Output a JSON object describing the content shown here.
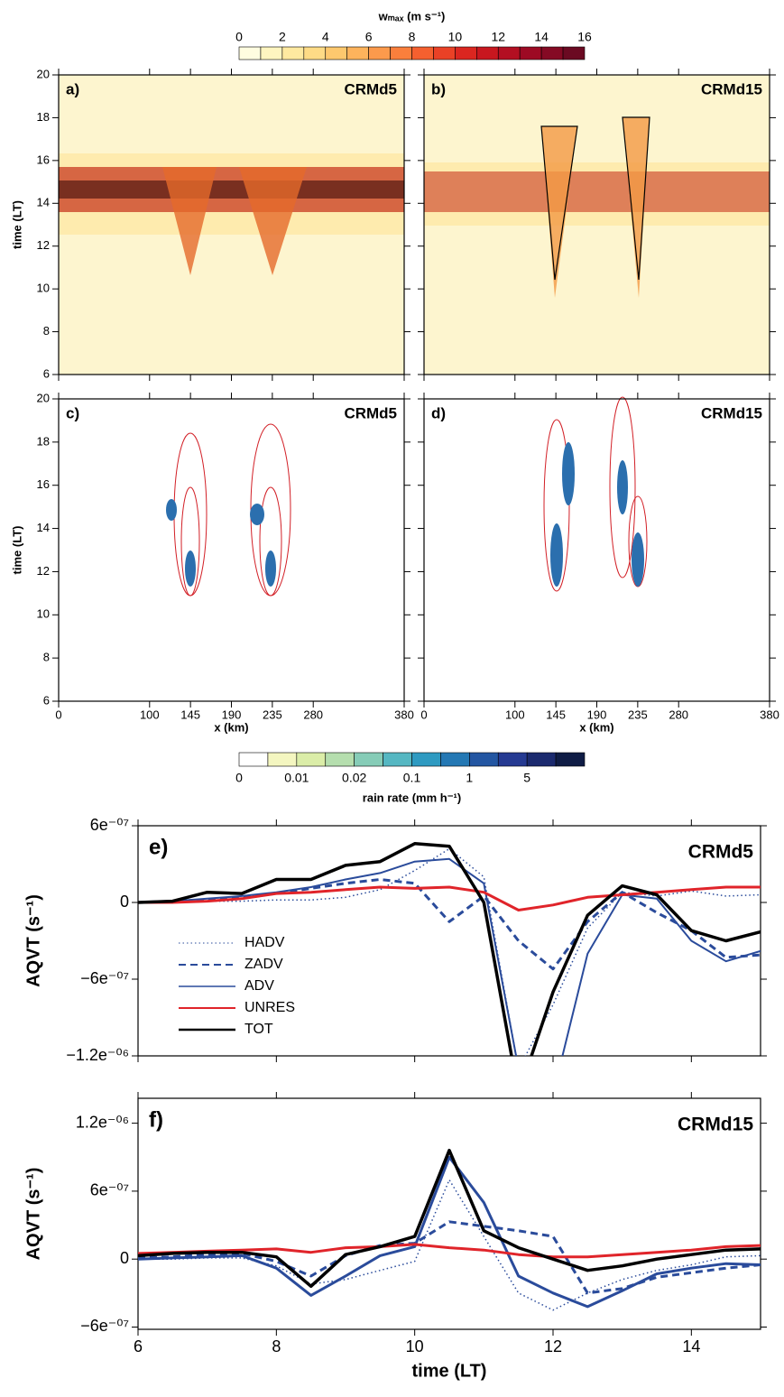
{
  "chart_data": [
    {
      "type": "colorbar",
      "title": "wₘₐₓ (m s⁻¹)",
      "xlim": [
        0,
        16
      ],
      "ticks": [
        0,
        2,
        4,
        6,
        8,
        10,
        12,
        14,
        16
      ],
      "colors": [
        "#fffde0",
        "#fef5c0",
        "#fee9a0",
        "#fedb86",
        "#fdc86e",
        "#fdb35c",
        "#fc9a4c",
        "#fa7f3c",
        "#f5602f",
        "#ea4126",
        "#db2620",
        "#c8171f",
        "#b30f22",
        "#9d0a24",
        "#850a24",
        "#6b0a22"
      ]
    },
    {
      "type": "heatmap",
      "panel_label": "a)",
      "model": "CRMd5",
      "ylabel": "time (LT)",
      "xlim": [
        0,
        380
      ],
      "ylim": [
        6,
        20
      ],
      "yticks": [
        6,
        8,
        10,
        12,
        14,
        16,
        18,
        20
      ],
      "xticks": [
        0,
        100,
        145,
        190,
        235,
        280,
        380
      ]
    },
    {
      "type": "heatmap",
      "panel_label": "b)",
      "model": "CRMd15",
      "xlim": [
        0,
        380
      ],
      "ylim": [
        6,
        20
      ],
      "yticks": [
        6,
        8,
        10,
        12,
        14,
        16,
        18,
        20
      ],
      "xticks": [
        0,
        100,
        145,
        190,
        235,
        280,
        380
      ]
    },
    {
      "type": "heatmap",
      "panel_label": "c)",
      "model": "CRMd5",
      "ylabel": "time (LT)",
      "xlabel": "x (km)",
      "xlim": [
        0,
        380
      ],
      "ylim": [
        6,
        20
      ],
      "yticks": [
        6,
        8,
        10,
        12,
        14,
        16,
        18,
        20
      ],
      "xticks": [
        0,
        100,
        145,
        190,
        235,
        280,
        380
      ]
    },
    {
      "type": "heatmap",
      "panel_label": "d)",
      "model": "CRMd15",
      "xlabel": "x (km)",
      "xlim": [
        0,
        380
      ],
      "ylim": [
        6,
        20
      ],
      "yticks": [
        6,
        8,
        10,
        12,
        14,
        16,
        18,
        20
      ],
      "xticks": [
        0,
        100,
        145,
        190,
        235,
        280,
        380
      ]
    },
    {
      "type": "colorbar_categorical",
      "title": "rain rate (mm h⁻¹)",
      "ticks": [
        0,
        0.01,
        0.02,
        0.1,
        1,
        5
      ],
      "colors": [
        "#ffffff",
        "#f4f6c0",
        "#dbeda8",
        "#b5deae",
        "#86ccb7",
        "#55b7c2",
        "#2e9ac1",
        "#2478b4",
        "#2356a2",
        "#253a92",
        "#1b2a6e",
        "#0f1c45"
      ]
    },
    {
      "type": "line",
      "panel_label": "e)",
      "model": "CRMd5",
      "ylabel": "AQVT (s⁻¹)",
      "x": [
        6,
        6.5,
        7,
        7.5,
        8,
        8.5,
        9,
        9.5,
        10,
        10.5,
        11,
        11.5,
        12,
        12.5,
        13,
        13.5,
        14,
        14.5,
        15
      ],
      "xlim": [
        6,
        15
      ],
      "xticks": [
        6,
        8,
        10,
        12,
        14
      ],
      "ylim": [
        -1.2e-06,
        6e-07
      ],
      "yticks": [
        {
          "value": -1.2e-06,
          "label": "−1.2e⁻⁰⁶"
        },
        {
          "value": -6e-07,
          "label": "−6e⁻⁰⁷"
        },
        0,
        {
          "value": 6e-07,
          "label": "6e⁻⁰⁷"
        }
      ],
      "series": [
        {
          "name": "HADV",
          "color": "#2a4b9b",
          "style": "dotted",
          "width": 1.5,
          "values": [
            0,
            0,
            1e-08,
            1e-08,
            2e-08,
            2e-08,
            4e-08,
            1e-07,
            2.5e-07,
            4.2e-07,
            2e-07,
            -1.3e-06,
            -8e-07,
            -2e-07,
            8e-08,
            5e-08,
            9e-08,
            5e-08,
            6e-08
          ]
        },
        {
          "name": "ZADV",
          "color": "#2a4b9b",
          "style": "dashed",
          "width": 3,
          "values": [
            0,
            1e-08,
            2e-08,
            4e-08,
            7e-08,
            1.1e-07,
            1.5e-07,
            1.8e-07,
            1.5e-07,
            -1.5e-07,
            5e-08,
            -3e-07,
            -5.2e-07,
            -1.5e-07,
            8e-08,
            -8e-08,
            -2.2e-07,
            -4.3e-07,
            -4.1e-07
          ]
        },
        {
          "name": "ADV",
          "color": "#2a4b9b",
          "style": "solid",
          "width": 2,
          "values": [
            0,
            1e-08,
            3e-08,
            5e-08,
            8e-08,
            1.2e-07,
            1.8e-07,
            2.3e-07,
            3.2e-07,
            3.4e-07,
            1.5e-07,
            -1.3e-06,
            -1.5e-06,
            -4e-07,
            6e-08,
            3e-08,
            -3e-07,
            -4.6e-07,
            -3.8e-07
          ]
        },
        {
          "name": "UNRES",
          "color": "#e0242a",
          "style": "solid",
          "width": 3,
          "values": [
            0,
            0,
            1e-08,
            3e-08,
            7e-08,
            8e-08,
            1e-07,
            1.2e-07,
            1.1e-07,
            1.2e-07,
            8e-08,
            -6e-08,
            -2e-08,
            4e-08,
            6e-08,
            8e-08,
            1e-07,
            1.2e-07,
            1.2e-07
          ]
        },
        {
          "name": "TOT",
          "color": "#000000",
          "style": "solid",
          "width": 3.5,
          "values": [
            0,
            1e-08,
            8e-08,
            7e-08,
            1.8e-07,
            1.8e-07,
            2.9e-07,
            3.2e-07,
            4.6e-07,
            4.4e-07,
            0,
            -1.5e-06,
            -7e-07,
            -1e-07,
            1.3e-07,
            6e-08,
            -2.2e-07,
            -3e-07,
            -2.3e-07
          ]
        }
      ]
    },
    {
      "type": "line",
      "panel_label": "f)",
      "model": "CRMd15",
      "ylabel": "AQVT (s⁻¹)",
      "xlabel": "time (LT)",
      "x": [
        6,
        6.5,
        7,
        7.5,
        8,
        8.5,
        9,
        9.5,
        10,
        10.5,
        11,
        11.5,
        12,
        12.5,
        13,
        13.5,
        14,
        14.5,
        15
      ],
      "xlim": [
        6,
        15
      ],
      "xticks": [
        6,
        8,
        10,
        12,
        14
      ],
      "ylim": [
        -6.2e-07,
        1.42e-06
      ],
      "yticks": [
        {
          "value": -6e-07,
          "label": "−6e⁻⁰⁷"
        },
        0,
        {
          "value": 6e-07,
          "label": "6e⁻⁰⁷"
        },
        {
          "value": 1.2e-06,
          "label": "1.2e⁻⁰⁶"
        }
      ],
      "series": [
        {
          "color": "#2a4b9b",
          "style": "dotted",
          "width": 1.5,
          "values": [
            0,
            0,
            1e-08,
            1e-08,
            -6e-08,
            -2.2e-07,
            -1.8e-07,
            -1e-07,
            -2e-08,
            7e-07,
            2e-07,
            -3e-07,
            -4.5e-07,
            -3e-07,
            -1.8e-07,
            -1e-07,
            -5e-08,
            2e-08,
            3e-08
          ]
        },
        {
          "color": "#2a4b9b",
          "style": "dashed",
          "width": 3,
          "values": [
            1e-08,
            2e-08,
            4e-08,
            5e-08,
            -2e-08,
            -1.5e-07,
            3e-08,
            1.2e-07,
            1.4e-07,
            3.3e-07,
            2.9e-07,
            2.5e-07,
            2e-07,
            -3e-07,
            -2.6e-07,
            -1.6e-07,
            -1.2e-07,
            -8e-08,
            -5e-08
          ]
        },
        {
          "color": "#2a4b9b",
          "style": "solid",
          "width": 3,
          "values": [
            0,
            1e-08,
            2e-08,
            3e-08,
            -8e-08,
            -3.2e-07,
            -1.5e-07,
            3e-08,
            1.1e-07,
            9e-07,
            5e-07,
            -1.5e-07,
            -3e-07,
            -4.2e-07,
            -2.8e-07,
            -1.3e-07,
            -8e-08,
            -4e-08,
            -5e-08
          ]
        },
        {
          "color": "#e0242a",
          "style": "solid",
          "width": 3,
          "values": [
            5e-08,
            6e-08,
            7e-08,
            8e-08,
            9e-08,
            6e-08,
            1e-07,
            1.1e-07,
            1.3e-07,
            1e-07,
            8e-08,
            4e-08,
            2e-08,
            2e-08,
            4e-08,
            6e-08,
            8e-08,
            1.1e-07,
            1.2e-07
          ]
        },
        {
          "color": "#000000",
          "style": "solid",
          "width": 3.5,
          "values": [
            3e-08,
            5e-08,
            6e-08,
            6e-08,
            2e-08,
            -2.4e-07,
            4e-08,
            1.1e-07,
            2e-07,
            9.6e-07,
            2.5e-07,
            1e-07,
            0,
            -1e-07,
            -6e-08,
            0,
            4e-08,
            8e-08,
            9e-08
          ]
        }
      ]
    }
  ]
}
